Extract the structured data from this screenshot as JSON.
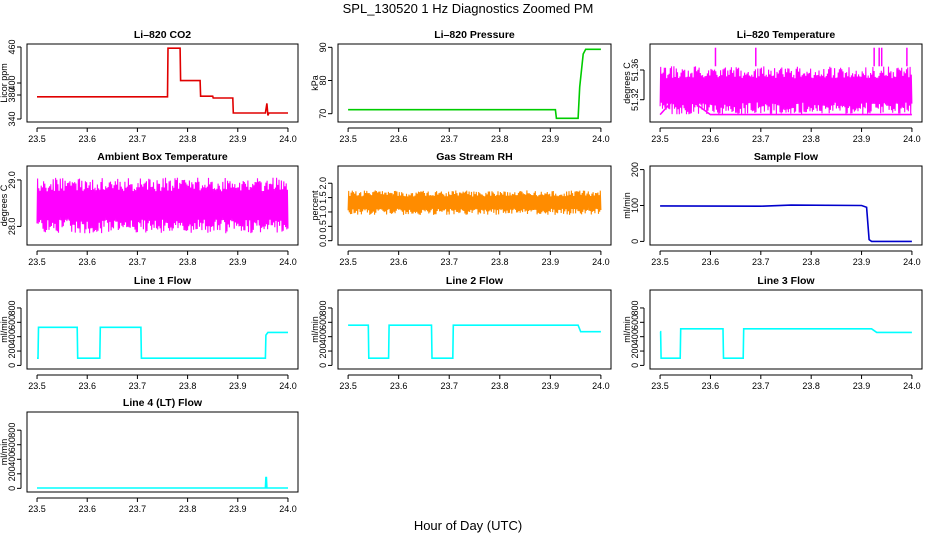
{
  "figure": {
    "title": "SPL_130520  1 Hz Diagnostics Zoomed PM",
    "xlabel": "Hour of Day (UTC)"
  },
  "chart_data": [
    {
      "type": "line",
      "title": "Li–820 CO2",
      "ylabel": "Licor ppm",
      "color": "#e00000",
      "xlim": [
        23.5,
        24.0
      ],
      "xticks": [
        "23.5",
        "23.6",
        "23.7",
        "23.8",
        "23.9",
        "24.0"
      ],
      "ylim": [
        335,
        465
      ],
      "yticks": [
        "340",
        "380",
        "400",
        "460"
      ],
      "ytick_values": [
        340,
        380,
        400,
        460
      ],
      "x": [
        23.5,
        23.76,
        23.761,
        23.785,
        23.786,
        23.825,
        23.826,
        23.85,
        23.851,
        23.89,
        23.891,
        23.955,
        23.958,
        23.96,
        23.962,
        24.0
      ],
      "y": [
        377,
        377,
        458,
        458,
        404,
        404,
        378,
        378,
        375,
        375,
        350,
        350,
        366,
        346,
        350,
        350
      ]
    },
    {
      "type": "line",
      "title": "Li–820 Pressure",
      "ylabel": "kPa",
      "color": "#00cc00",
      "xlim": [
        23.5,
        24.0
      ],
      "xticks": [
        "23.5",
        "23.6",
        "23.7",
        "23.8",
        "23.9",
        "24.0"
      ],
      "ylim": [
        67.5,
        91
      ],
      "yticks": [
        "70",
        "80",
        "90"
      ],
      "ytick_values": [
        70,
        80,
        90
      ],
      "x": [
        23.5,
        23.91,
        23.912,
        23.955,
        23.958,
        23.965,
        23.97,
        24.0
      ],
      "y": [
        71.2,
        71.2,
        68.6,
        68.6,
        78,
        88,
        89.4,
        89.4
      ]
    },
    {
      "type": "line",
      "title": "Li–820 Temperature",
      "ylabel": "degrees C",
      "color": "#ff00ff",
      "xlim": [
        23.5,
        24.0
      ],
      "xticks": [
        "23.5",
        "23.6",
        "23.7",
        "23.8",
        "23.9",
        "24.0"
      ],
      "ylim": [
        51.29,
        51.395
      ],
      "yticks": [
        "51.32",
        "51.36"
      ],
      "ytick_values": [
        51.32,
        51.36
      ],
      "band": {
        "low": 51.3,
        "high": 51.365
      },
      "spikes_x": [
        23.61,
        23.69,
        23.925,
        23.935,
        23.94,
        23.99
      ],
      "spike_top": 51.39,
      "x": [
        23.5,
        23.54,
        23.6,
        23.7,
        23.8,
        23.9,
        24.0
      ],
      "y": [
        51.3,
        51.33,
        51.3,
        51.3,
        51.3,
        51.3,
        51.3
      ]
    },
    {
      "type": "line",
      "title": "Ambient Box Temperature",
      "ylabel": "degrees C",
      "color": "#ff00ff",
      "xlim": [
        23.5,
        24.0
      ],
      "xticks": [
        "23.5",
        "23.6",
        "23.7",
        "23.8",
        "23.9",
        "24.0"
      ],
      "ylim": [
        27.6,
        29.3
      ],
      "yticks": [
        "28.0",
        "29.0"
      ],
      "ytick_values": [
        28.0,
        29.0
      ],
      "band": {
        "low": 27.85,
        "high": 29.05
      },
      "x": [
        23.5,
        23.75,
        24.0
      ],
      "y": [
        28.45,
        28.45,
        28.45
      ]
    },
    {
      "type": "line",
      "title": "Gas Stream RH",
      "ylabel": "percent",
      "color": "#ff8c00",
      "xlim": [
        23.5,
        24.0
      ],
      "xticks": [
        "23.5",
        "23.6",
        "23.7",
        "23.8",
        "23.9",
        "24.0"
      ],
      "ylim": [
        -0.15,
        2.6
      ],
      "yticks": [
        "0.0",
        "0.5",
        "1.0",
        "1.5",
        "2.0"
      ],
      "ytick_values": [
        0.0,
        0.5,
        1.0,
        1.5,
        2.0
      ],
      "band": {
        "low": 0.9,
        "high": 1.75
      },
      "x": [
        23.5,
        23.62,
        23.75,
        23.87,
        24.0
      ],
      "y": [
        1.35,
        1.3,
        1.3,
        1.3,
        1.3
      ]
    },
    {
      "type": "line",
      "title": "Sample Flow",
      "ylabel": "ml/min",
      "color": "#0000cc",
      "xlim": [
        23.5,
        24.0
      ],
      "xticks": [
        "23.5",
        "23.6",
        "23.7",
        "23.8",
        "23.9",
        "24.0"
      ],
      "ylim": [
        -10,
        210
      ],
      "yticks": [
        "0",
        "100",
        "200"
      ],
      "ytick_values": [
        0,
        100,
        200
      ],
      "x": [
        23.5,
        23.7,
        23.76,
        23.9,
        23.91,
        23.915,
        23.92,
        24.0
      ],
      "y": [
        99,
        98,
        101,
        100,
        95,
        5,
        0,
        0
      ]
    },
    {
      "type": "line",
      "title": "Line 1 Flow",
      "ylabel": "ml/min",
      "color": "#00ffff",
      "xlim": [
        23.5,
        24.0
      ],
      "xticks": [
        "23.5",
        "23.6",
        "23.7",
        "23.8",
        "23.9",
        "24.0"
      ],
      "ylim": [
        -50,
        1050
      ],
      "yticks": [
        "0",
        "200",
        "400",
        "600",
        "800"
      ],
      "ytick_values": [
        0,
        200,
        400,
        600,
        800
      ],
      "x": [
        23.5,
        23.502,
        23.503,
        23.58,
        23.581,
        23.625,
        23.626,
        23.707,
        23.708,
        23.955,
        23.956,
        23.96,
        24.0
      ],
      "y": [
        100,
        100,
        530,
        530,
        100,
        100,
        530,
        530,
        100,
        100,
        420,
        460,
        460
      ]
    },
    {
      "type": "line",
      "title": "Line 2 Flow",
      "ylabel": "ml/min",
      "color": "#00ffff",
      "xlim": [
        23.5,
        24.0
      ],
      "xticks": [
        "23.5",
        "23.6",
        "23.7",
        "23.8",
        "23.9",
        "24.0"
      ],
      "ylim": [
        -50,
        1050
      ],
      "yticks": [
        "0",
        "200",
        "400",
        "600",
        "800"
      ],
      "ytick_values": [
        0,
        200,
        400,
        600,
        800
      ],
      "x": [
        23.5,
        23.54,
        23.541,
        23.58,
        23.581,
        23.665,
        23.666,
        23.707,
        23.708,
        23.955,
        23.96,
        24.0
      ],
      "y": [
        560,
        560,
        100,
        100,
        560,
        560,
        100,
        100,
        560,
        560,
        470,
        470
      ]
    },
    {
      "type": "line",
      "title": "Line 3 Flow",
      "ylabel": "ml/min",
      "color": "#00ffff",
      "xlim": [
        23.5,
        24.0
      ],
      "xticks": [
        "23.5",
        "23.6",
        "23.7",
        "23.8",
        "23.9",
        "24.0"
      ],
      "ylim": [
        -50,
        1050
      ],
      "yticks": [
        "0",
        "200",
        "400",
        "600",
        "800"
      ],
      "ytick_values": [
        0,
        200,
        400,
        600,
        800
      ],
      "x": [
        23.5,
        23.501,
        23.502,
        23.54,
        23.541,
        23.625,
        23.626,
        23.665,
        23.666,
        23.92,
        23.93,
        24.0
      ],
      "y": [
        470,
        470,
        100,
        100,
        510,
        510,
        100,
        100,
        510,
        510,
        460,
        460
      ]
    },
    {
      "type": "line",
      "title": "Line 4 (LT) Flow",
      "ylabel": "ml/min",
      "color": "#00ffff",
      "xlim": [
        23.5,
        24.0
      ],
      "xticks": [
        "23.5",
        "23.6",
        "23.7",
        "23.8",
        "23.9",
        "24.0"
      ],
      "ylim": [
        -50,
        1050
      ],
      "yticks": [
        "0",
        "200",
        "400",
        "600",
        "800"
      ],
      "ytick_values": [
        0,
        200,
        400,
        600,
        800
      ],
      "x": [
        23.5,
        23.955,
        23.956,
        23.957,
        23.958,
        24.0
      ],
      "y": [
        5,
        5,
        150,
        150,
        5,
        5
      ]
    }
  ]
}
